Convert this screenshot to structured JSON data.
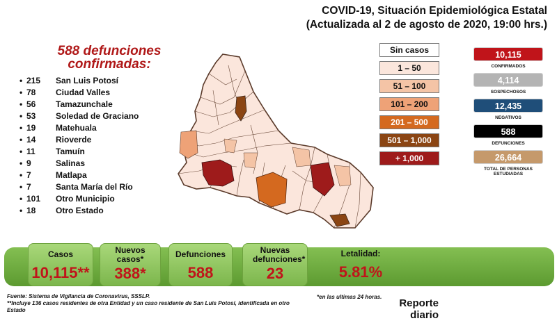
{
  "title": {
    "line1": "COVID-19, Situación Epidemiológica Estatal",
    "line2": "(Actualizada al 2 de agosto de 2020, 19:00 hrs.)"
  },
  "deaths": {
    "heading_line1": "588 defunciones",
    "heading_line2": "confirmadas:",
    "bullet": "•",
    "rows": [
      {
        "count": "215",
        "municipio": "San Luis Potosí"
      },
      {
        "count": "78",
        "municipio": "Ciudad Valles"
      },
      {
        "count": "56",
        "municipio": "Tamazunchale"
      },
      {
        "count": "53",
        "municipio": "Soledad de Graciano"
      },
      {
        "count": "19",
        "municipio": "Matehuala"
      },
      {
        "count": "14",
        "municipio": "Rioverde"
      },
      {
        "count": "11",
        "municipio": "Tamuín"
      },
      {
        "count": "9",
        "municipio": "Salinas"
      },
      {
        "count": "7",
        "municipio": "Matlapa"
      },
      {
        "count": "7",
        "municipio": "Santa María del Río"
      },
      {
        "count": "101",
        "municipio": "Otro Municipio"
      },
      {
        "count": "18",
        "municipio": "Otro Estado"
      }
    ]
  },
  "legend": [
    {
      "label": "Sin casos",
      "color": "#ffffff",
      "text_color": "#111111"
    },
    {
      "label": "1 – 50",
      "color": "#fbe6dc",
      "text_color": "#111111"
    },
    {
      "label": "51 – 100",
      "color": "#f4c4a6",
      "text_color": "#111111"
    },
    {
      "label": "101 – 200",
      "color": "#eea277",
      "text_color": "#111111"
    },
    {
      "label": "201 – 500",
      "color": "#d4691f",
      "text_color": "#ffffff"
    },
    {
      "label": "501 – 1,000",
      "color": "#8b4513",
      "text_color": "#ffffff"
    },
    {
      "label": "+ 1,000",
      "color": "#9e1b1b",
      "text_color": "#ffffff"
    }
  ],
  "kpis": [
    {
      "value": "10,115",
      "label": "CONFIRMADOS",
      "color": "#c0141a"
    },
    {
      "value": "4,114",
      "label": "SOSPECHOSOS",
      "color": "#b4b4b4"
    },
    {
      "value": "12,435",
      "label": "NEGATIVOS",
      "color": "#1f4e79"
    },
    {
      "value": "588",
      "label": "DEFUNCIONES",
      "color": "#000000"
    },
    {
      "value": "26,664",
      "label": "TOTAL DE PERSONAS ESTUDIADAS",
      "color": "#c5996b"
    }
  ],
  "summary": [
    {
      "label": "Casos",
      "value": "10,115**"
    },
    {
      "label": "Nuevos casos*",
      "value": "388*"
    },
    {
      "label": "Defunciones",
      "value": "588"
    },
    {
      "label": "Nuevas defunciones*",
      "value": "23"
    },
    {
      "label": "Letalidad:",
      "value": "5.81%"
    }
  ],
  "footer": {
    "source": "Fuente: Sistema de Vigilancia de Coronavirus, SSSLP.",
    "note1": "*en las ultimas 24 horas.",
    "note2_line1": "**Incluye 136 casos residentes de otra Entidad y un caso residente de San Luis Potosí, identificada en otro",
    "note2_line2": "Estado",
    "report_line1": "Reporte",
    "report_line2": "diario"
  }
}
